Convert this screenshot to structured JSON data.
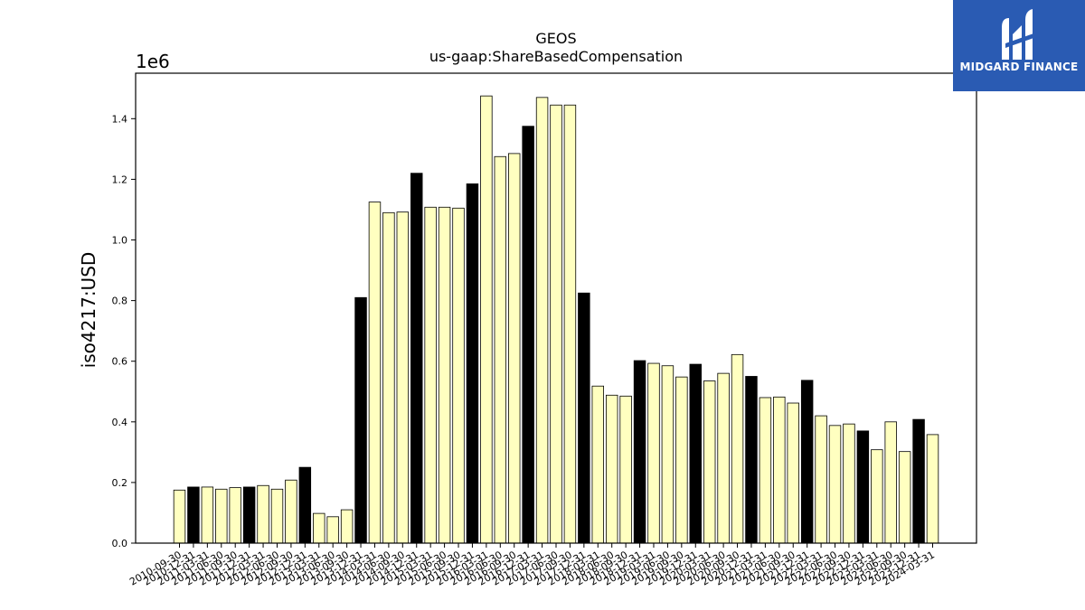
{
  "logo": {
    "brand": "MIDGARD FINANCE",
    "icon": "midgard-logo-icon"
  },
  "chart_data": {
    "type": "bar",
    "title": "GEOS",
    "subtitle": "us-gaap:ShareBasedCompensation",
    "ylabel": "iso4217:USD",
    "y_offset_label": "1e6",
    "ylim": [
      0,
      1550000
    ],
    "yticks": [
      0,
      200000,
      400000,
      600000,
      800000,
      1000000,
      1200000,
      1400000
    ],
    "ytick_labels": [
      "0.0",
      "0.2",
      "0.4",
      "0.6",
      "0.8",
      "1.0",
      "1.2",
      "1.4"
    ],
    "colors": {
      "quarter": "#ffffc0",
      "annual": "#000000",
      "edge": "#000000"
    },
    "grid": false,
    "categories": [
      "2010-09-30",
      "2010-12-31",
      "2011-03-31",
      "2011-06-30",
      "2011-09-30",
      "2011-12-31",
      "2012-03-31",
      "2012-06-30",
      "2012-09-30",
      "2012-12-31",
      "2013-03-31",
      "2013-06-30",
      "2013-09-30",
      "2013-12-31",
      "2014-03-31",
      "2014-06-30",
      "2014-09-30",
      "2014-12-31",
      "2015-03-31",
      "2015-06-30",
      "2015-09-30",
      "2015-12-31",
      "2016-03-31",
      "2016-06-30",
      "2016-09-30",
      "2016-12-31",
      "2017-03-31",
      "2017-06-30",
      "2017-09-30",
      "2017-12-31",
      "2018-03-31",
      "2018-06-30",
      "2018-09-30",
      "2018-12-31",
      "2019-03-31",
      "2019-06-30",
      "2019-09-30",
      "2019-12-31",
      "2020-03-31",
      "2020-06-30",
      "2020-09-30",
      "2020-12-31",
      "2021-03-31",
      "2021-06-30",
      "2021-09-30",
      "2021-12-31",
      "2022-03-31",
      "2022-06-30",
      "2022-09-30",
      "2022-12-31",
      "2023-03-31",
      "2023-06-30",
      "2023-09-30",
      "2023-12-31",
      "2024-03-31"
    ],
    "values": [
      175000,
      185000,
      185000,
      178000,
      183000,
      185000,
      190000,
      178000,
      208000,
      250000,
      98000,
      87000,
      110000,
      810000,
      1125000,
      1090000,
      1092000,
      1220000,
      1108000,
      1108000,
      1105000,
      1185000,
      1475000,
      1275000,
      1285000,
      1375000,
      1470000,
      1445000,
      1445000,
      825000,
      518000,
      488000,
      485000,
      602000,
      593000,
      585000,
      548000,
      590000,
      535000,
      560000,
      622000,
      550000,
      480000,
      482000,
      462000,
      537000,
      420000,
      388000,
      393000,
      370000,
      308000,
      400000,
      302000,
      408000,
      358000
    ],
    "annual": [
      false,
      true,
      false,
      false,
      false,
      true,
      false,
      false,
      false,
      true,
      false,
      false,
      false,
      true,
      false,
      false,
      false,
      true,
      false,
      false,
      false,
      true,
      false,
      false,
      false,
      true,
      false,
      false,
      false,
      true,
      false,
      false,
      false,
      true,
      false,
      false,
      false,
      true,
      false,
      false,
      false,
      true,
      false,
      false,
      false,
      true,
      false,
      false,
      false,
      true,
      false,
      false,
      false,
      true,
      false
    ]
  }
}
